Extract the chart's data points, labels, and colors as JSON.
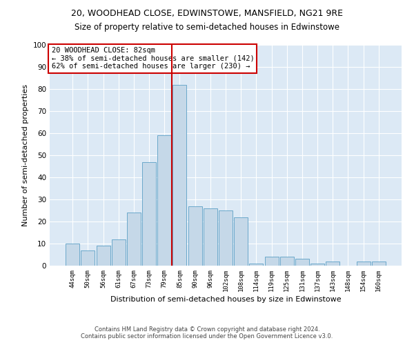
{
  "title1": "20, WOODHEAD CLOSE, EDWINSTOWE, MANSFIELD, NG21 9RE",
  "title2": "Size of property relative to semi-detached houses in Edwinstowe",
  "xlabel": "Distribution of semi-detached houses by size in Edwinstowe",
  "ylabel": "Number of semi-detached properties",
  "footer": "Contains HM Land Registry data © Crown copyright and database right 2024.\nContains public sector information licensed under the Open Government Licence v3.0.",
  "categories": [
    "44sqm",
    "50sqm",
    "56sqm",
    "61sqm",
    "67sqm",
    "73sqm",
    "79sqm",
    "85sqm",
    "90sqm",
    "96sqm",
    "102sqm",
    "108sqm",
    "114sqm",
    "119sqm",
    "125sqm",
    "131sqm",
    "137sqm",
    "143sqm",
    "148sqm",
    "154sqm",
    "160sqm"
  ],
  "values": [
    10,
    7,
    9,
    12,
    24,
    47,
    59,
    82,
    27,
    26,
    25,
    22,
    1,
    4,
    4,
    3,
    1,
    2,
    0,
    2,
    2
  ],
  "bar_color": "#c5d8e8",
  "bar_edge_color": "#5a9fc5",
  "property_label": "20 WOODHEAD CLOSE: 82sqm",
  "pct_smaller": 38,
  "count_smaller": 142,
  "pct_larger": 62,
  "count_larger": 230,
  "vline_x_index": 7,
  "vline_color": "#cc0000",
  "annotation_box_color": "#cc0000",
  "background_color": "#dce9f5",
  "ylim": [
    0,
    100
  ],
  "title1_fontsize": 9,
  "title2_fontsize": 8.5,
  "xlabel_fontsize": 8,
  "ylabel_fontsize": 8,
  "footer_fontsize": 6,
  "annotation_fontsize": 7.5
}
